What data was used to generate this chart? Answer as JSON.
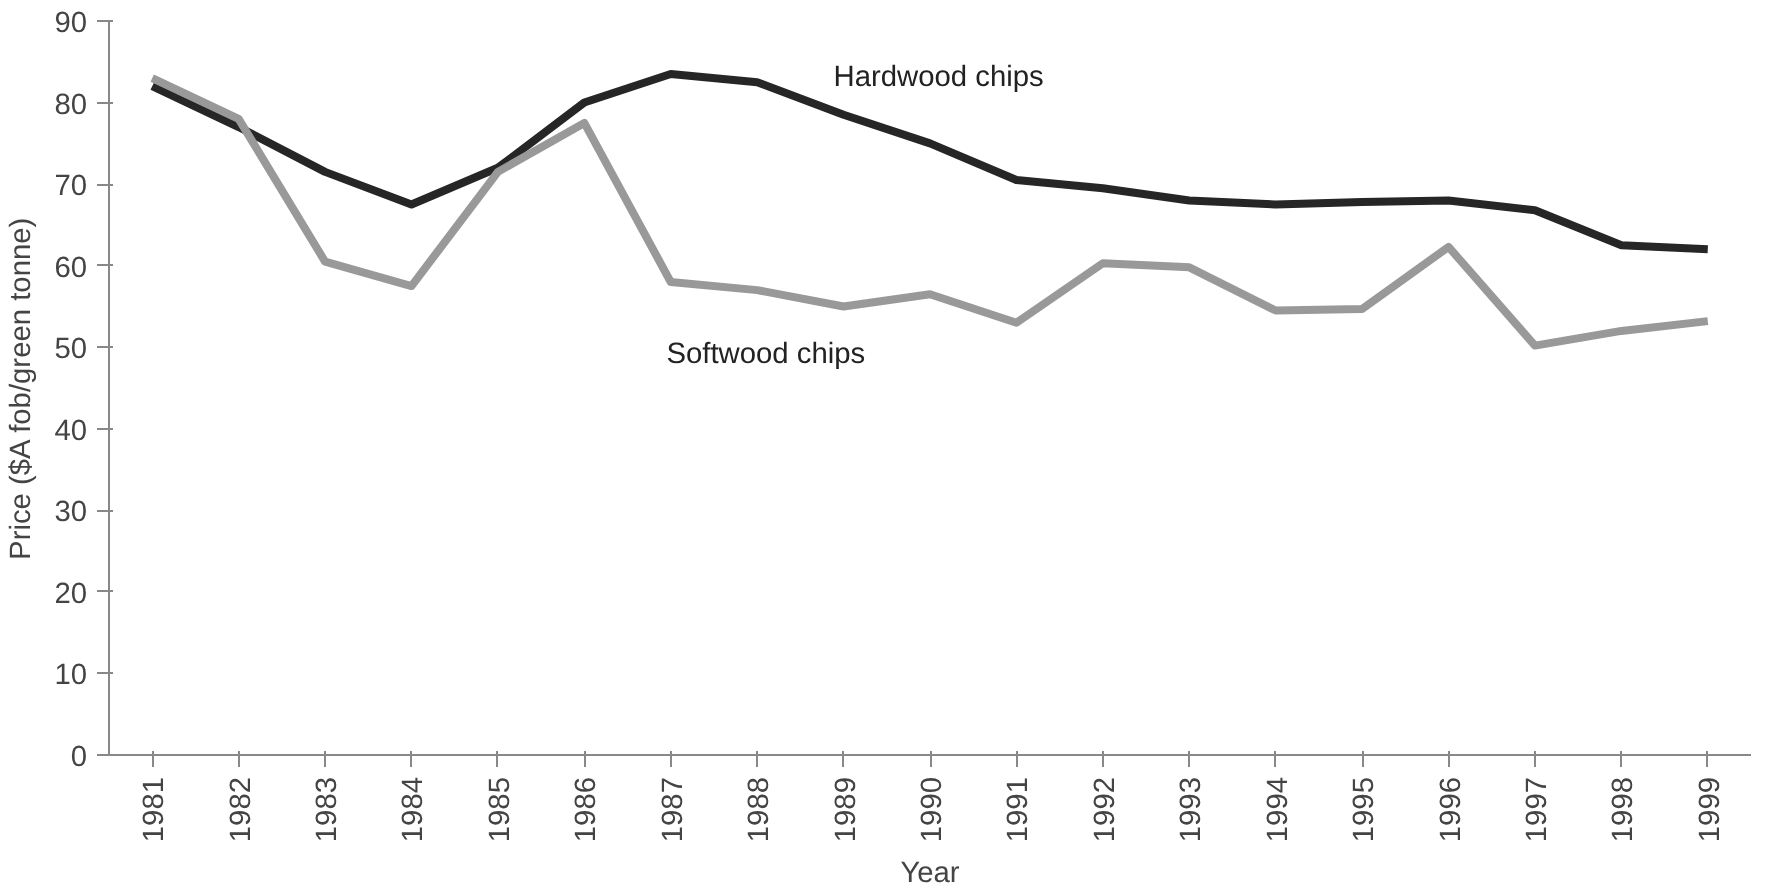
{
  "chart_data": {
    "type": "line",
    "xlabel": "Year",
    "ylabel": "Price ($A fob/green tonne)",
    "categories": [
      "1981",
      "1982",
      "1983",
      "1984",
      "1985",
      "1986",
      "1987",
      "1988",
      "1989",
      "1990",
      "1991",
      "1992",
      "1993",
      "1994",
      "1995",
      "1996",
      "1997",
      "1998",
      "1999"
    ],
    "series": [
      {
        "name": "Hardwood chips",
        "color": "#262626",
        "values": [
          82,
          77,
          71.5,
          67.5,
          72,
          80,
          83.5,
          82.5,
          78.5,
          75,
          70.5,
          69.5,
          68,
          67.5,
          67.8,
          68,
          66.8,
          62.5,
          62
        ]
      },
      {
        "name": "Softwood chips",
        "color": "#999999",
        "values": [
          83,
          78,
          60.5,
          57.5,
          71.5,
          77.5,
          58,
          57,
          55,
          56.5,
          53,
          60.3,
          59.8,
          54.5,
          54.7,
          62.3,
          50.2,
          52,
          53.2
        ]
      }
    ],
    "ylim": [
      0,
      90
    ],
    "yticks": [
      0,
      10,
      20,
      30,
      40,
      50,
      60,
      70,
      80,
      90
    ],
    "grid": false,
    "marker": "none",
    "line_style": "solid"
  }
}
